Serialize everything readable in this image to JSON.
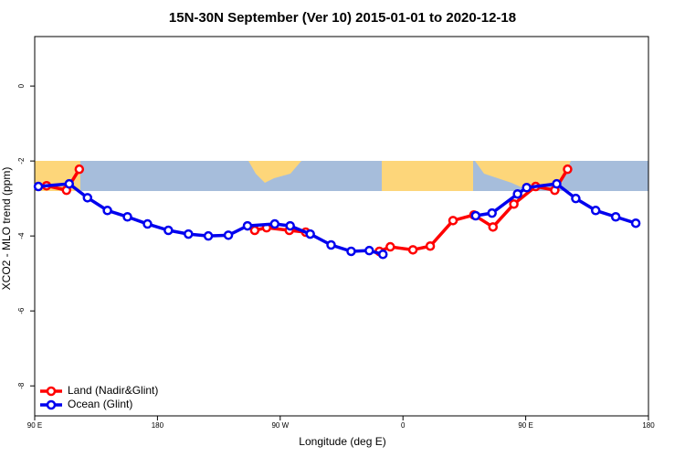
{
  "chart_data": {
    "type": "line",
    "title": "15N-30N September (Ver 10)   2015-01-01 to 2020-12-18",
    "x_label": "Longitude (deg E)",
    "y_label": "XCO2 - MLO trend (ppm)",
    "xlim": [
      90,
      540
    ],
    "ylim": [
      -8.8,
      1.32
    ],
    "xticks": [
      {
        "value": 90,
        "label": "90 E"
      },
      180,
      {
        "value": 270,
        "label": "90 W"
      },
      {
        "value": 360,
        "label": "0"
      },
      {
        "value": 450,
        "label": "90 E"
      },
      {
        "value": 540,
        "label": "180"
      }
    ],
    "yticks": [
      0,
      -2,
      -4,
      -6,
      -8
    ],
    "legend": "bottom-left",
    "series": [
      {
        "name": "Land (Nadir&Glint)",
        "color": "#ff0000",
        "x": [
          98.7,
          113.3,
          122.7,
          null,
          251.3,
          260,
          276.7,
          288.7,
          null,
          342.7,
          350.7,
          367.3,
          380,
          396.7,
          412,
          426,
          441.3,
          457.3,
          471.3,
          480.7
        ],
        "values": [
          -2.66,
          -2.78,
          -2.22,
          null,
          -3.85,
          -3.78,
          -3.85,
          -3.9,
          null,
          -4.41,
          -4.29,
          -4.37,
          -4.27,
          -3.59,
          -3.44,
          -3.76,
          -3.15,
          -2.68,
          -2.78,
          -2.22
        ]
      },
      {
        "name": "Ocean (Glint)",
        "color": "#0000ee",
        "x": [
          92.7,
          115.3,
          128.7,
          143.3,
          158,
          172.7,
          188,
          202.7,
          217.3,
          232,
          246,
          266,
          277.3,
          292,
          307.3,
          322,
          335.3,
          345.3,
          null,
          413.3,
          425.3,
          444,
          450.7,
          472.7,
          486.7,
          501.3,
          516,
          530.7
        ],
        "values": [
          -2.68,
          -2.61,
          -2.98,
          -3.32,
          -3.49,
          -3.68,
          -3.85,
          -3.95,
          -4.0,
          -3.98,
          -3.73,
          -3.68,
          -3.73,
          -3.95,
          -4.24,
          -4.41,
          -4.39,
          -4.49,
          null,
          -3.46,
          -3.39,
          -2.88,
          -2.71,
          -2.61,
          -3.0,
          -3.32,
          -3.49,
          -3.66
        ]
      }
    ]
  }
}
